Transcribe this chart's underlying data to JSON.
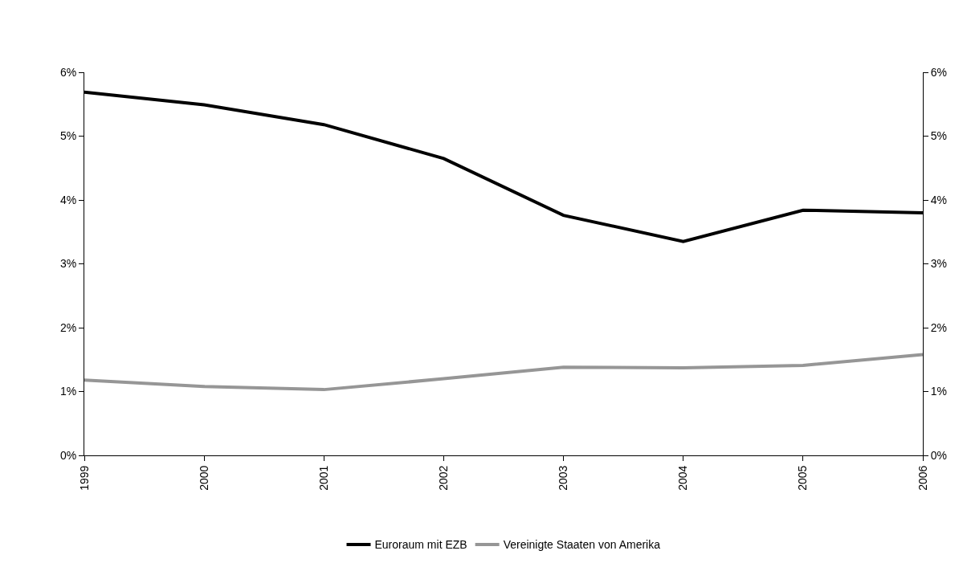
{
  "chart_data": {
    "type": "line",
    "categories": [
      "1999",
      "2000",
      "2001",
      "2002",
      "2003",
      "2004",
      "2005",
      "2006"
    ],
    "series": [
      {
        "name": "Euroraum mit EZB",
        "color": "#000000",
        "values": [
          5.69,
          5.49,
          5.18,
          4.65,
          3.76,
          3.35,
          3.84,
          3.8
        ]
      },
      {
        "name": "Vereinigte Staaten von Amerika",
        "color": "#969696",
        "values": [
          1.18,
          1.08,
          1.03,
          1.2,
          1.38,
          1.37,
          1.41,
          1.58
        ]
      }
    ],
    "ylim": [
      0,
      6
    ],
    "yticks": [
      {
        "value": 0,
        "label": "0%"
      },
      {
        "value": 1,
        "label": "1%"
      },
      {
        "value": 2,
        "label": "2%"
      },
      {
        "value": 3,
        "label": "3%"
      },
      {
        "value": 4,
        "label": "4%"
      },
      {
        "value": 5,
        "label": "5%"
      },
      {
        "value": 6,
        "label": "6%"
      }
    ],
    "y2lim": [
      0,
      6
    ],
    "y2ticks": [
      {
        "value": 0,
        "label": "0%"
      },
      {
        "value": 1,
        "label": "1%"
      },
      {
        "value": 2,
        "label": "2%"
      },
      {
        "value": 3,
        "label": "3%"
      },
      {
        "value": 4,
        "label": "4%"
      },
      {
        "value": 5,
        "label": "5%"
      },
      {
        "value": 6,
        "label": "6%"
      }
    ],
    "legend": "bottom",
    "marker": "none",
    "line_style": "solid"
  }
}
